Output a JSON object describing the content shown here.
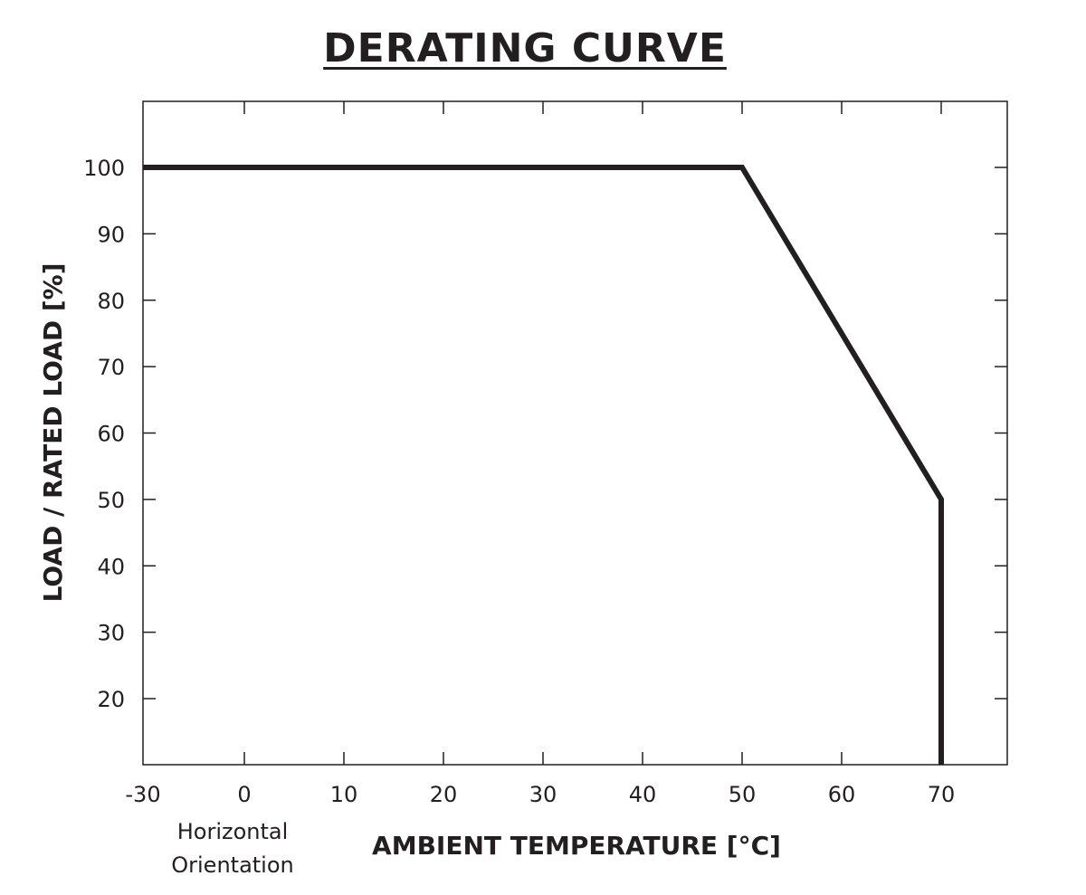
{
  "chart_data": {
    "type": "line",
    "title": "DERATING CURVE",
    "xlabel": "AMBIENT TEMPERATURE [°C]",
    "ylabel": "LOAD / RATED LOAD [%]",
    "note_lines": [
      "Horizontal",
      "Orientation"
    ],
    "x_ticks": [
      -30,
      0,
      10,
      20,
      30,
      40,
      50,
      60,
      70
    ],
    "y_ticks": [
      20,
      30,
      40,
      50,
      60,
      70,
      80,
      90,
      100
    ],
    "x_tick_labels": [
      "-30",
      "0",
      "10",
      "20",
      "30",
      "40",
      "50",
      "60",
      "70"
    ],
    "y_tick_labels": [
      "20",
      "30",
      "40",
      "50",
      "60",
      "70",
      "80",
      "90",
      "100"
    ],
    "series": [
      {
        "x": [
          -30,
          50,
          70,
          70
        ],
        "y": [
          100,
          100,
          50,
          10
        ],
        "color": "#231f20"
      }
    ],
    "grid": false
  }
}
